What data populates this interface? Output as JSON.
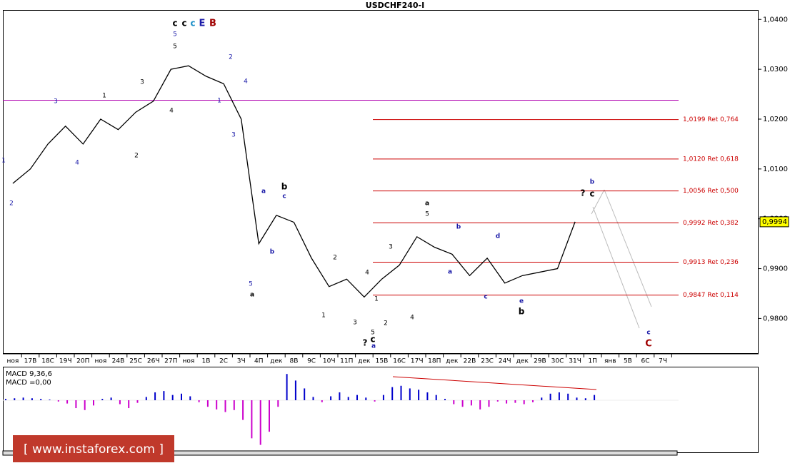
{
  "chart_data": {
    "type": "line",
    "title": "USDCHF240-I",
    "categories": [
      "ноя",
      "17В",
      "18С",
      "19Ч",
      "20П",
      "ноя",
      "24В",
      "25С",
      "26Ч",
      "27П",
      "ноя",
      "1В",
      "2С",
      "3Ч",
      "4П",
      "дек",
      "8В",
      "9С",
      "10Ч",
      "11П",
      "дек",
      "15В",
      "16С",
      "17Ч",
      "18П",
      "дек",
      "22В",
      "23С",
      "24Ч",
      "дек",
      "29В",
      "30С",
      "31Ч",
      "1П",
      "янв",
      "5В",
      "6С",
      "7Ч"
    ],
    "values": [
      1.0071,
      1.01,
      1.015,
      1.0186,
      1.015,
      1.02,
      1.0179,
      1.0214,
      1.0236,
      1.03,
      1.0307,
      1.0286,
      1.0271,
      1.02,
      0.995,
      1.0007,
      0.9993,
      0.9921,
      0.9864,
      0.9879,
      0.9843,
      0.9879,
      0.9907,
      0.9964,
      0.9943,
      0.9929,
      0.9886,
      0.9921,
      0.9871,
      0.9886,
      0.9893,
      0.99,
      0.9994,
      null,
      null,
      null,
      null,
      null
    ],
    "color": "#000000",
    "ylim": [
      0.9729,
      1.0419
    ],
    "yticks": [
      {
        "value": 1.04,
        "label": "1,0400"
      },
      {
        "value": 1.03,
        "label": "1,0300"
      },
      {
        "value": 1.02,
        "label": "1,0200"
      },
      {
        "value": 1.01,
        "label": "1,0100"
      },
      {
        "value": 1.0,
        "label": "1,0000"
      },
      {
        "value": 0.99,
        "label": "0,9900"
      },
      {
        "value": 0.98,
        "label": "0,9800"
      }
    ],
    "horizontal_line": {
      "value": 1.0238,
      "color": "#b000b0"
    },
    "fib_levels": [
      {
        "value": 1.0199,
        "label": "1,0199 Ret 0,764"
      },
      {
        "value": 1.012,
        "label": "1,0120 Ret 0,618"
      },
      {
        "value": 1.0056,
        "label": "1,0056 Ret 0,500"
      },
      {
        "value": 0.9992,
        "label": "0,9992 Ret 0,382"
      },
      {
        "value": 0.9913,
        "label": "0,9913 Ret 0,236"
      },
      {
        "value": 0.9847,
        "label": "0,9847 Ret 0,114"
      }
    ],
    "fib_color": "#cc0000",
    "current_price": {
      "value": 0.9994,
      "label": "0,9994"
    },
    "annotations": [
      {
        "text": "c",
        "color": "#000000"
      },
      {
        "text": "c",
        "color": "#000000"
      },
      {
        "text": "c",
        "color": "#1e90c8"
      },
      {
        "text": "E",
        "color": "#1a1aa8"
      },
      {
        "text": "B",
        "color": "#a00000"
      },
      {
        "text": "5",
        "color": "#1a1aa8"
      },
      {
        "text": "5",
        "color": "#000000"
      },
      {
        "text": "1",
        "color": "#1a1aa8"
      },
      {
        "text": "2",
        "color": "#1a1aa8"
      },
      {
        "text": "3",
        "color": "#1a1aa8"
      },
      {
        "text": "4",
        "color": "#1a1aa8"
      },
      {
        "text": "1",
        "color": "#000000"
      },
      {
        "text": "2",
        "color": "#000000"
      },
      {
        "text": "3",
        "color": "#000000"
      },
      {
        "text": "4",
        "color": "#000000"
      },
      {
        "text": "2",
        "color": "#1a1aa8"
      },
      {
        "text": "4",
        "color": "#1a1aa8"
      },
      {
        "text": "1",
        "color": "#1a1aa8"
      },
      {
        "text": "3",
        "color": "#1a1aa8"
      },
      {
        "text": "5",
        "color": "#1a1aa8"
      },
      {
        "text": "a",
        "color": "#000000"
      },
      {
        "text": "a",
        "color": "#1a1aa8"
      },
      {
        "text": "b",
        "color": "#000000"
      },
      {
        "text": "c",
        "color": "#1a1aa8"
      },
      {
        "text": "b",
        "color": "#1a1aa8"
      },
      {
        "text": "1",
        "color": "#000000"
      },
      {
        "text": "2",
        "color": "#000000"
      },
      {
        "text": "3",
        "color": "#000000"
      },
      {
        "text": "4",
        "color": "#000000"
      },
      {
        "text": "1",
        "color": "#000000"
      },
      {
        "text": "2",
        "color": "#000000"
      },
      {
        "text": "5",
        "color": "#000000"
      },
      {
        "text": "c",
        "color": "#000000"
      },
      {
        "text": "a",
        "color": "#1a1aa8"
      },
      {
        "text": "?",
        "color": "#000000"
      },
      {
        "text": "3",
        "color": "#000000"
      },
      {
        "text": "4",
        "color": "#000000"
      },
      {
        "text": "a",
        "color": "#000000"
      },
      {
        "text": "5",
        "color": "#000000"
      },
      {
        "text": "b",
        "color": "#1a1aa8"
      },
      {
        "text": "a",
        "color": "#1a1aa8"
      },
      {
        "text": "c",
        "color": "#1a1aa8"
      },
      {
        "text": "d",
        "color": "#1a1aa8"
      },
      {
        "text": "e",
        "color": "#1a1aa8"
      },
      {
        "text": "b",
        "color": "#000000"
      },
      {
        "text": "?",
        "color": "#000000"
      },
      {
        "text": "c",
        "color": "#000000"
      },
      {
        "text": "b",
        "color": "#1a1aa8"
      },
      {
        "text": "c",
        "color": "#1a1aa8"
      },
      {
        "text": "C",
        "color": "#a00000"
      }
    ],
    "macd_label": "MACD 9,36,6",
    "macd_value_label": "MACD =0,00",
    "macd_ylim": [
      -0.0075,
      0.005
    ],
    "macd_colors": {
      "positive": "#0000cc",
      "negative": "#cc00cc"
    },
    "macd": [
      0.0002,
      0.0003,
      0.0004,
      0.0003,
      0.0002,
      0.0001,
      -0.0002,
      -0.0005,
      -0.0012,
      -0.0015,
      -0.0008,
      0.0002,
      0.0004,
      -0.0006,
      -0.0012,
      -0.0004,
      0.0005,
      0.0012,
      0.0014,
      0.0008,
      0.001,
      0.0006,
      -0.0003,
      -0.001,
      -0.0014,
      -0.0018,
      -0.0015,
      -0.003,
      -0.0058,
      -0.0068,
      -0.0048,
      -0.001,
      0.004,
      0.003,
      0.0018,
      0.0005,
      -0.0003,
      0.0006,
      0.0012,
      0.0005,
      0.0008,
      0.0004,
      -0.0002,
      0.0008,
      0.002,
      0.0022,
      0.0018,
      0.0016,
      0.0012,
      0.0008,
      0.0002,
      -0.0006,
      -0.001,
      -0.0008,
      -0.0014,
      -0.001,
      -0.0002,
      -0.0005,
      -0.0004,
      -0.0006,
      -0.0003,
      0.0004,
      0.001,
      0.0012,
      0.001,
      0.0004,
      0.0003,
      0.0008
    ],
    "watermark": "[ www.instaforex.com ]"
  }
}
